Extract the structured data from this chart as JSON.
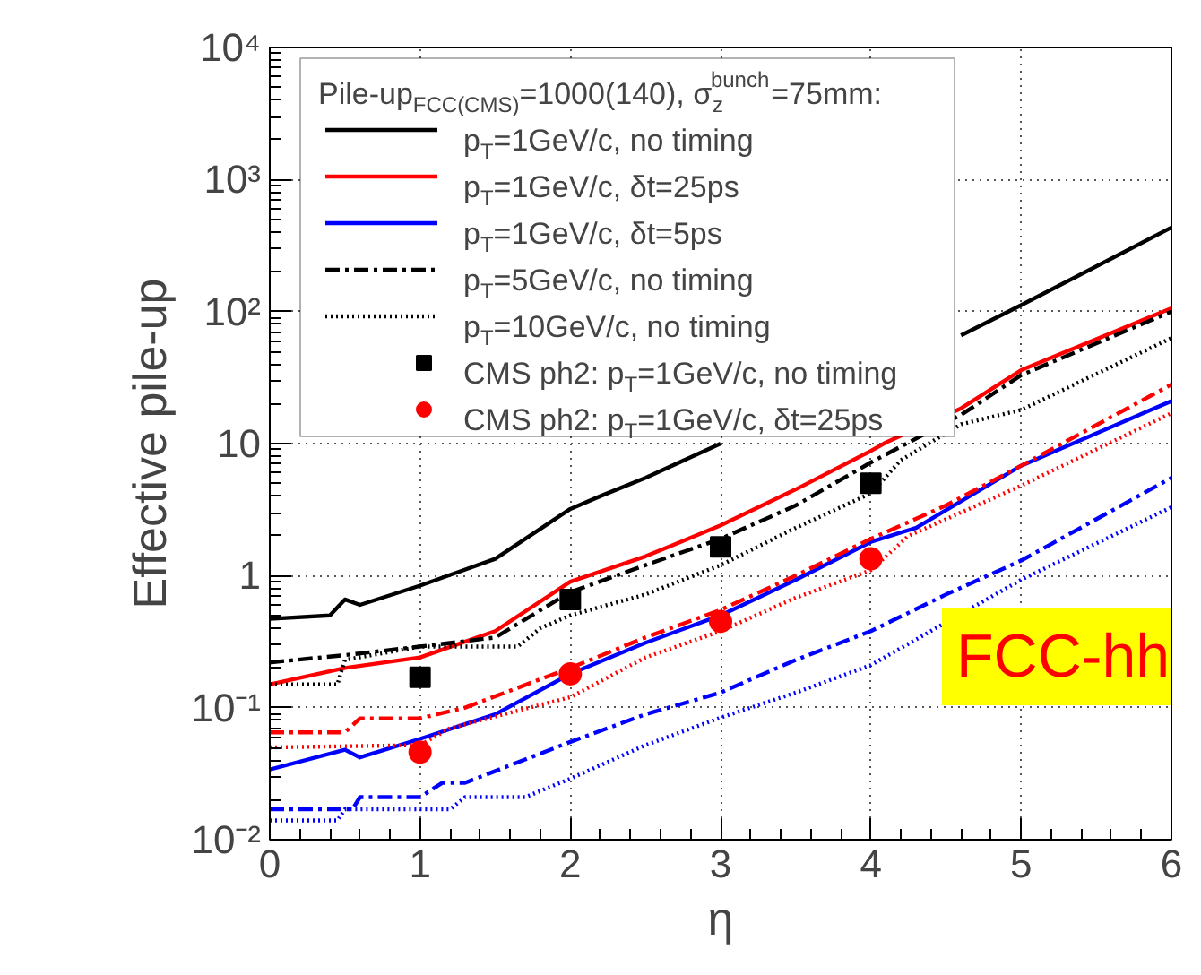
{
  "chart_data": {
    "type": "line",
    "xlabel": "η",
    "ylabel": "Effective pile-up",
    "log": "y",
    "xlim": [
      0,
      6
    ],
    "xticks": [
      0,
      1,
      2,
      3,
      4,
      5,
      6
    ],
    "ylim": [
      0.01,
      10000
    ],
    "yticks": [
      {
        "value": 0.01,
        "label": "10⁻²"
      },
      {
        "value": 0.1,
        "label": "10⁻¹"
      },
      1,
      10,
      {
        "value": 100,
        "label": "10²"
      },
      {
        "value": 1000,
        "label": "10³"
      },
      {
        "value": 10000,
        "label": "10⁴"
      }
    ],
    "grid": true,
    "legend": "top left",
    "legend_title": "Pile-up$_{FCC(CMS)}$=1000(140), σ$^{bunch}$$_{z}$=75mm:",
    "annotations": [
      "FCC-hh"
    ],
    "series": [
      {
        "name": "p$_{T}$=1GeV/c, no timing",
        "color": "#000000",
        "line_style": "solid",
        "x": [
          0,
          0.4,
          0.5,
          0.6,
          1,
          1.5,
          2,
          2.2,
          2.5,
          3,
          3.25,
          3.5,
          4,
          4.25,
          4.6,
          5,
          6
        ],
        "values": [
          0.47,
          0.5,
          0.66,
          0.6,
          0.84,
          1.34,
          3.2,
          4,
          5.5,
          10,
          null,
          null,
          null,
          null,
          66,
          112,
          433
        ]
      },
      {
        "name": "p$_{T}$=1GeV/c, δt=25ps",
        "color": "#ff0000",
        "line_style": "solid",
        "x": [
          0,
          0.5,
          1,
          1.5,
          2,
          2.5,
          3,
          3.5,
          4,
          4.1,
          4.6,
          5,
          6
        ],
        "values": [
          0.15,
          0.2,
          0.24,
          0.38,
          0.9,
          1.4,
          2.4,
          4.5,
          8.8,
          10.2,
          18.5,
          36,
          106
        ]
      },
      {
        "name": "p$_{T}$=1GeV/c, δt=5ps",
        "color": "#0000ff",
        "line_style": "solid",
        "x": [
          0,
          0.5,
          0.6,
          1,
          1.5,
          2,
          2.5,
          3,
          3.5,
          4,
          4.3,
          5,
          6
        ],
        "values": [
          0.034,
          0.048,
          0.042,
          0.058,
          0.089,
          0.18,
          0.31,
          0.5,
          0.93,
          1.8,
          2.3,
          6.8,
          21
        ]
      },
      {
        "name": "p$_{T}$=5GeV/c, no timing",
        "color": "#000000",
        "line_style": "dashed",
        "x": [
          0,
          0.5,
          1,
          1.5,
          2,
          2.5,
          3,
          3.5,
          4,
          4.6,
          5,
          6
        ],
        "values": [
          0.22,
          0.25,
          0.29,
          0.34,
          0.75,
          1.2,
          1.9,
          3.4,
          7.2,
          16.5,
          33,
          100
        ]
      },
      {
        "name": "p$_{T}$=10GeV/c, no timing",
        "color": "#000000",
        "line_style": "dotted",
        "x": [
          0,
          0.45,
          0.5,
          1,
          1.65,
          1.8,
          2,
          2.5,
          3,
          3.5,
          4,
          4.2,
          4.6,
          5,
          6
        ],
        "values": [
          0.15,
          0.15,
          0.23,
          0.29,
          0.29,
          0.4,
          0.5,
          0.72,
          1.2,
          2.3,
          4.2,
          7.5,
          14,
          18,
          63
        ]
      },
      {
        "color": "#ff0000",
        "line_style": "dashed",
        "x": [
          0,
          0.5,
          0.6,
          1,
          1.3,
          2,
          2.5,
          3,
          3.5,
          4,
          4.5,
          5,
          6
        ],
        "values": [
          0.065,
          0.065,
          0.083,
          0.083,
          0.1,
          0.2,
          0.34,
          0.55,
          1.0,
          1.9,
          3.4,
          6.8,
          28
        ]
      },
      {
        "color": "#ff0000",
        "line_style": "dotted",
        "x": [
          0,
          1,
          1.2,
          2,
          2.5,
          3,
          3.5,
          4,
          4.25,
          5,
          6
        ],
        "values": [
          0.05,
          0.052,
          0.07,
          0.12,
          0.24,
          0.38,
          0.68,
          1.1,
          2.0,
          4.8,
          17
        ]
      },
      {
        "color": "#0000ff",
        "line_style": "dashed",
        "x": [
          0,
          0.55,
          0.6,
          1,
          1.15,
          1.3,
          2,
          2.5,
          3,
          3.5,
          4,
          4.5,
          5,
          6
        ],
        "values": [
          0.017,
          0.017,
          0.021,
          0.021,
          0.027,
          0.027,
          0.055,
          0.089,
          0.13,
          0.23,
          0.38,
          0.72,
          1.3,
          5.5
        ]
      },
      {
        "color": "#0000ff",
        "line_style": "dotted",
        "x": [
          0,
          0.45,
          0.5,
          1.2,
          1.3,
          1.7,
          2,
          2.5,
          3,
          3.5,
          4,
          5,
          6
        ],
        "values": [
          0.014,
          0.014,
          0.017,
          0.017,
          0.021,
          0.021,
          0.029,
          0.052,
          0.084,
          0.13,
          0.21,
          0.93,
          3.3
        ]
      },
      {
        "name": "CMS ph2: p$_{T}$=1GeV/c, no timing",
        "type": "scatter",
        "marker": "square",
        "color": "#000000",
        "x": [
          1,
          2,
          3,
          4
        ],
        "values": [
          0.17,
          0.66,
          1.65,
          5.0
        ]
      },
      {
        "name": "CMS ph2: p$_{T}$=1GeV/c, δt=25ps",
        "type": "scatter",
        "marker": "circle",
        "color": "#ff0000",
        "x": [
          1,
          2,
          3,
          4
        ],
        "values": [
          0.046,
          0.18,
          0.45,
          1.34
        ]
      }
    ]
  }
}
